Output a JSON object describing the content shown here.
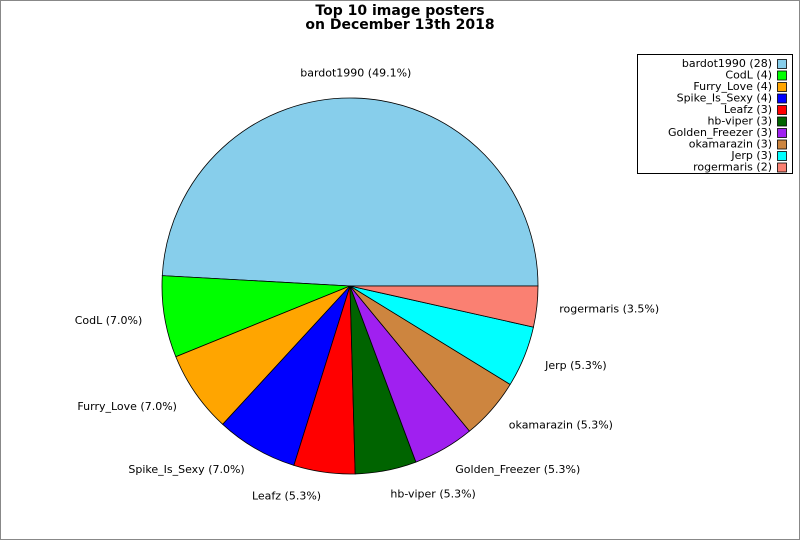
{
  "chart_data": {
    "type": "pie",
    "title": [
      "Top 10 image posters",
      "on December 13th 2018"
    ],
    "categories": [
      "bardot1990",
      "CodL",
      "Furry_Love",
      "Spike_Is_Sexy",
      "Leafz",
      "hb-viper",
      "Golden_Freezer",
      "okamarazin",
      "Jerp",
      "rogermaris"
    ],
    "values": [
      28,
      4,
      4,
      4,
      3,
      3,
      3,
      3,
      3,
      2
    ],
    "value_labels": [
      "bardot1990 (49.1%)",
      "CodL (7.0%)",
      "Furry_Love (7.0%)",
      "Spike_Is_Sexy (7.0%)",
      "Leafz (5.3%)",
      "hb-viper (5.3%)",
      "Golden_Freezer (5.3%)",
      "okamarazin (5.3%)",
      "Jerp (5.3%)",
      "rogermaris (3.5%)"
    ],
    "legend_labels": [
      "bardot1990 (28)",
      "CodL (4)",
      "Furry_Love (4)",
      "Spike_Is_Sexy (4)",
      "Leafz (3)",
      "hb-viper (3)",
      "Golden_Freezer (3)",
      "okamarazin (3)",
      "Jerp (3)",
      "rogermaris (2)"
    ],
    "colors": [
      "#87ceeb",
      "#00ff00",
      "#ffa500",
      "#0000ff",
      "#ff0000",
      "#006400",
      "#a020f0",
      "#cd853f",
      "#00ffff",
      "#fa8072"
    ],
    "legend": "upper right"
  }
}
